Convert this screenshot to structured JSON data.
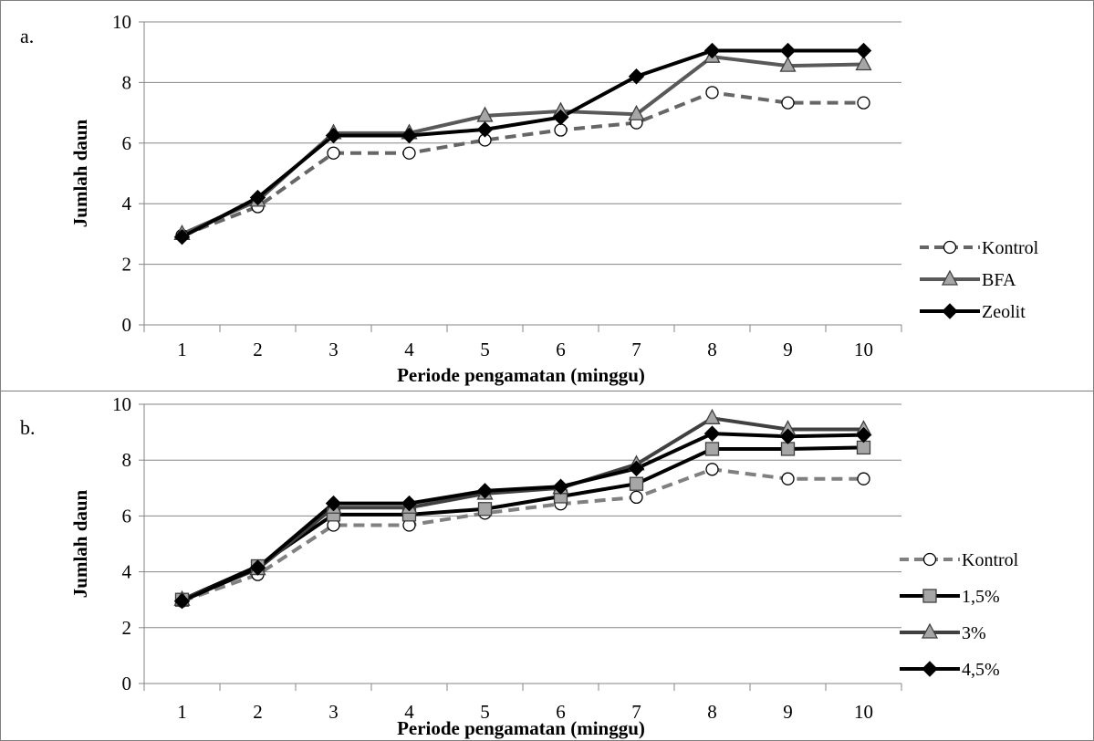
{
  "chart_data": [
    {
      "type": "line",
      "panel_label": "a.",
      "xlabel": "Periode pengamatan (minggu)",
      "ylabel": "Jumlah daun",
      "ylim": [
        0,
        10
      ],
      "yticks": [
        0,
        2,
        4,
        6,
        8,
        10
      ],
      "categories": [
        "1",
        "2",
        "3",
        "4",
        "5",
        "6",
        "7",
        "8",
        "9",
        "10"
      ],
      "grid": "horizontal",
      "legend_position": "right",
      "series": [
        {
          "name": "Kontrol",
          "color": "#666666",
          "dash": "dashed",
          "marker": "circle",
          "values": [
            2.95,
            3.9,
            5.67,
            5.67,
            6.1,
            6.43,
            6.67,
            7.67,
            7.33,
            7.33
          ]
        },
        {
          "name": "BFA",
          "color": "#595959",
          "dash": "solid",
          "marker": "triangle",
          "values": [
            3.0,
            4.1,
            6.33,
            6.33,
            6.9,
            7.05,
            6.95,
            8.85,
            8.55,
            8.6
          ]
        },
        {
          "name": "Zeolit",
          "color": "#000000",
          "dash": "solid",
          "marker": "diamond",
          "values": [
            2.9,
            4.2,
            6.25,
            6.25,
            6.45,
            6.85,
            8.2,
            9.05,
            9.05,
            9.05
          ]
        }
      ]
    },
    {
      "type": "line",
      "panel_label": "b.",
      "xlabel": "Periode pengamatan (minggu)",
      "ylabel": "Jumlah daun",
      "ylim": [
        0,
        10
      ],
      "yticks": [
        0,
        2,
        4,
        6,
        8,
        10
      ],
      "categories": [
        "1",
        "2",
        "3",
        "4",
        "5",
        "6",
        "7",
        "8",
        "9",
        "10"
      ],
      "grid": "horizontal",
      "legend_position": "right",
      "series": [
        {
          "name": "Kontrol",
          "color": "#808080",
          "dash": "dashed",
          "marker": "circle",
          "values": [
            2.95,
            3.9,
            5.67,
            5.67,
            6.1,
            6.43,
            6.67,
            7.67,
            7.33,
            7.33
          ]
        },
        {
          "name": "1,5%",
          "color": "#000000",
          "dash": "solid",
          "marker": "square",
          "values": [
            3.0,
            4.2,
            6.05,
            6.05,
            6.25,
            6.7,
            7.15,
            8.4,
            8.4,
            8.45
          ]
        },
        {
          "name": "3%",
          "color": "#404040",
          "dash": "solid",
          "marker": "triangle",
          "values": [
            3.0,
            4.1,
            6.3,
            6.3,
            6.8,
            7.0,
            7.85,
            9.5,
            9.1,
            9.1
          ]
        },
        {
          "name": "4,5%",
          "color": "#000000",
          "dash": "solid",
          "marker": "diamond",
          "values": [
            2.95,
            4.15,
            6.45,
            6.45,
            6.9,
            7.05,
            7.7,
            8.95,
            8.85,
            8.9
          ]
        }
      ]
    }
  ]
}
